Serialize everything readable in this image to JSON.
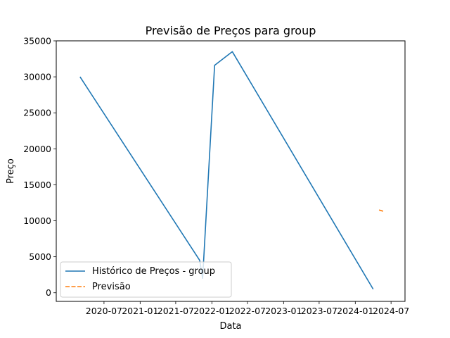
{
  "chart_data": {
    "type": "line",
    "title": "Previsão de Preços para group",
    "xlabel": "Data",
    "ylabel": "Preço",
    "x_axis": {
      "kind": "date",
      "range": [
        "2019-11-01",
        "2024-09-10"
      ],
      "tick_labels": [
        "2020-07",
        "2021-01",
        "2021-07",
        "2022-01",
        "2022-07",
        "2023-01",
        "2023-07",
        "2024-01",
        "2024-07"
      ]
    },
    "y_axis": {
      "range": [
        -1200,
        35000
      ],
      "ticks": [
        0,
        5000,
        10000,
        15000,
        20000,
        25000,
        30000,
        35000
      ]
    },
    "grid": false,
    "legend": {
      "placement": "lower-left",
      "entries": [
        "Histórico de Preços - group",
        "Previsão"
      ]
    },
    "colors": {
      "historico": "#1f77b4",
      "previsao": "#ff7f0e"
    },
    "series": [
      {
        "name": "Histórico de Preços - group",
        "style": "solid",
        "points": [
          {
            "x": "2020-03-01",
            "y": 30000
          },
          {
            "x": "2021-10-31",
            "y": 4500
          },
          {
            "x": "2021-11-15",
            "y": 2000
          },
          {
            "x": "2022-01-15",
            "y": 31600
          },
          {
            "x": "2022-04-15",
            "y": 33500
          },
          {
            "x": "2024-04-01",
            "y": 500
          }
        ]
      },
      {
        "name": "Previsão",
        "style": "dashed",
        "points": [
          {
            "x": "2024-05-01",
            "y": 11500
          },
          {
            "x": "2024-05-25",
            "y": 11300
          }
        ]
      }
    ]
  }
}
